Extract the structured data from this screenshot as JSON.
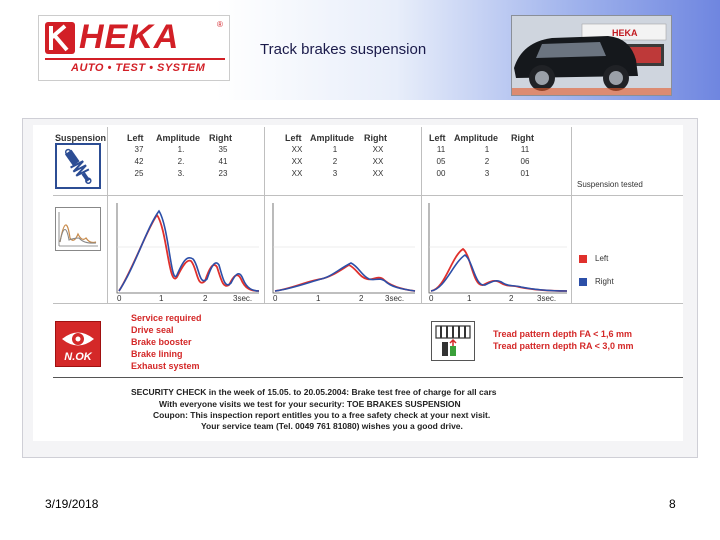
{
  "header": {
    "logo_word": "HEKA",
    "logo_reg": "®",
    "logo_tagline": "AUTO • TEST • SYSTEM",
    "title": "Track brakes suspension",
    "photo_badge": "HEKA"
  },
  "report": {
    "columns": {
      "suspension": "Suspension",
      "left": "Left",
      "amplitude": "Amplitude",
      "right": "Right"
    },
    "groups": [
      {
        "rows": [
          {
            "left": "37",
            "amp": "1.",
            "right": "35"
          },
          {
            "left": "42",
            "amp": "2.",
            "right": "41"
          },
          {
            "left": "25",
            "amp": "3.",
            "right": "23"
          }
        ]
      },
      {
        "rows": [
          {
            "left": "XX",
            "amp": "1",
            "right": "XX"
          },
          {
            "left": "XX",
            "amp": "2",
            "right": "XX"
          },
          {
            "left": "XX",
            "amp": "3",
            "right": "XX"
          }
        ]
      },
      {
        "rows": [
          {
            "left": "11",
            "amp": "1",
            "right": "11"
          },
          {
            "left": "05",
            "amp": "2",
            "right": "06"
          },
          {
            "left": "00",
            "amp": "3",
            "right": "01"
          }
        ]
      }
    ],
    "suspension_note": "Suspension tested",
    "x_ticks": [
      "0",
      "1",
      "2",
      "3sec."
    ],
    "legend": {
      "left": "Left",
      "right": "Right"
    },
    "colors": {
      "left": "#e0302c",
      "right": "#2c4fa8",
      "accent": "#d42828"
    },
    "nok_label": "N.OK",
    "service_items": [
      "Service required",
      "Drive seal",
      "Brake booster",
      "Brake lining",
      "Exhaust system"
    ],
    "tread": [
      "Tread pattern depth FA  < 1,6 mm",
      "Tread pattern depth RA  < 3,0 mm"
    ],
    "security": {
      "line1": "SECURITY CHECK in the week of 15.05. to 20.05.2004:   Brake test free of charge for all cars",
      "line2": "With everyone visits we test for your security:   TOE    BRAKES    SUSPENSION",
      "line3": "Coupon: This inspection report entitles you to a free safety check at your next visit.",
      "line4": "Your service team (Tel. 0049 761 81080) wishes you a good drive."
    }
  },
  "footer": {
    "date": "3/19/2018",
    "page": "8"
  }
}
